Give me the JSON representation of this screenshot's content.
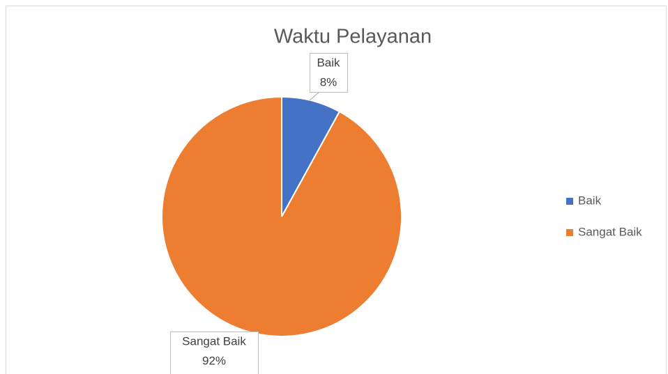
{
  "chart_data": {
    "type": "pie",
    "title": "Waktu Pelayanan",
    "categories": [
      "Baik",
      "Sangat Baik"
    ],
    "values": [
      8,
      92
    ],
    "value_labels": [
      "8%",
      "92%"
    ],
    "colors": [
      "#4472c4",
      "#ed7d31"
    ],
    "legend": "right"
  }
}
